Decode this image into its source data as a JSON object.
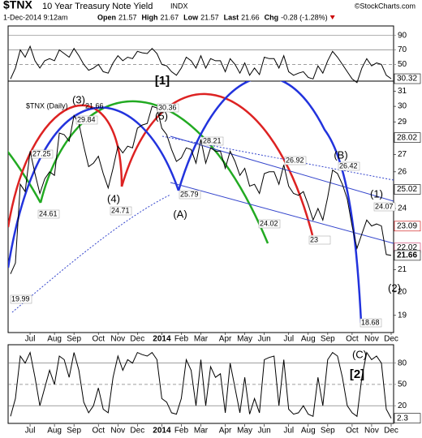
{
  "chart_data": [
    {
      "type": "line",
      "name": "RSI",
      "color": "#000000",
      "values": [
        30,
        45,
        70,
        60,
        75,
        55,
        45,
        55,
        58,
        55,
        70,
        65,
        60,
        72,
        62,
        50,
        42,
        45,
        50,
        40,
        38,
        52,
        62,
        55,
        60,
        58,
        68,
        66,
        65,
        72,
        65,
        50,
        48,
        40,
        35,
        45,
        60,
        55,
        45,
        62,
        45,
        58,
        55,
        55,
        40,
        58,
        50,
        38,
        52,
        35,
        45,
        36,
        60,
        58,
        58,
        45,
        62,
        40,
        35,
        38,
        40,
        32,
        30,
        48,
        38,
        55,
        68,
        60,
        50,
        40,
        30,
        25,
        45,
        58,
        48,
        52,
        50,
        35,
        30.32
      ],
      "ylim": [
        27,
        103
      ],
      "yticks": [
        50,
        70,
        90
      ],
      "grid": true
    },
    {
      "type": "line",
      "title": "$TNX",
      "subtitle": "10 Year Treasury Note Yield",
      "exchange": "INDX",
      "date": "1-Dec-2014 9:12am",
      "quote": [
        {
          "label": "Open",
          "value": 21.57
        },
        {
          "label": "High",
          "value": 21.67
        },
        {
          "label": "Low",
          "value": 21.57
        },
        {
          "label": "Last",
          "value": 21.66
        },
        {
          "label": "Chg",
          "value": -0.28,
          "value_label": "-0.28 (-1.28%)"
        }
      ],
      "legend": "$TNX (Daily)",
      "watermark": "©StockCharts.com",
      "categories": [
        null,
        null,
        null,
        null,
        "Jul",
        null,
        null,
        null,
        null,
        "Aug",
        null,
        null,
        null,
        "Sep",
        null,
        null,
        null,
        null,
        "Oct",
        null,
        null,
        null,
        "Nov",
        null,
        null,
        null,
        "Dec",
        null,
        null,
        null,
        null,
        "2014",
        null,
        null,
        null,
        "Feb",
        null,
        null,
        null,
        "Mar",
        null,
        null,
        null,
        null,
        "Apr",
        null,
        null,
        null,
        "May",
        null,
        null,
        null,
        "Jun",
        null,
        null,
        null,
        null,
        "Jul",
        null,
        null,
        null,
        "Aug",
        null,
        null,
        null,
        "Sep",
        null,
        null,
        null,
        null,
        "Oct",
        null,
        null,
        null,
        "Nov",
        null,
        null,
        null,
        "Dec"
      ],
      "values": [
        20.8,
        21.3,
        25.3,
        24.9,
        27.2,
        25.9,
        24.8,
        25.6,
        26.0,
        25.8,
        28.3,
        28.2,
        27.8,
        29.4,
        28.9,
        27.5,
        26.3,
        26.5,
        26.9,
        25.9,
        25.1,
        26.2,
        27.5,
        27.1,
        27.5,
        27.4,
        28.6,
        28.8,
        28.9,
        30.0,
        29.9,
        28.6,
        28.2,
        27.3,
        26.6,
        26.8,
        27.4,
        27.3,
        26.5,
        27.9,
        26.5,
        27.4,
        27.2,
        27.2,
        26.2,
        27.2,
        26.6,
        25.8,
        26.2,
        25.2,
        25.3,
        24.8,
        25.9,
        26.0,
        26.0,
        25.3,
        26.4,
        25.2,
        24.8,
        24.7,
        24.9,
        24.2,
        23.4,
        24.0,
        23.4,
        24.6,
        26.1,
        25.9,
        25.3,
        24.5,
        23.1,
        22.0,
        22.7,
        23.4,
        23.1,
        23.2,
        23.1,
        21.7,
        21.66
      ],
      "color": "#000000",
      "log": true,
      "ylim": [
        18.3,
        31.7
      ],
      "yticks": [
        19,
        20,
        21,
        24,
        26,
        27,
        29,
        30,
        31
      ],
      "level_labels": [
        {
          "value": 28.02,
          "color": "#000000"
        },
        {
          "value": 25.02,
          "color": "#000000"
        },
        {
          "value": 23.09,
          "color": "#cc0000"
        },
        {
          "value": 22.02,
          "color": "#cc3366"
        },
        {
          "value": 21.66,
          "color": "#000000"
        }
      ],
      "wave_labels": [
        {
          "text": "[1]",
          "color": "#0000cc"
        },
        {
          "text": "(3)",
          "color": "#000000"
        },
        {
          "text": "(5)",
          "color": "#000000"
        },
        {
          "text": "(4)",
          "color": "#000000"
        },
        {
          "text": "(A)",
          "color": "#000000"
        },
        {
          "text": "(B)",
          "color": "#000000"
        },
        {
          "text": "(1)",
          "color": "#000000"
        },
        {
          "text": "(2)",
          "color": "#000000"
        }
      ],
      "price_labels": [
        19.99,
        27.25,
        24.61,
        29.84,
        24.71,
        30.36,
        28.21,
        25.79,
        26.92,
        24.02,
        23.0,
        26.42,
        24.07,
        18.68
      ]
    },
    {
      "type": "line",
      "name": "Stochastic",
      "color": "#000000",
      "values": [
        5,
        30,
        90,
        80,
        95,
        60,
        20,
        45,
        70,
        50,
        90,
        85,
        60,
        95,
        70,
        25,
        10,
        20,
        45,
        15,
        10,
        60,
        90,
        70,
        85,
        80,
        95,
        92,
        90,
        95,
        85,
        30,
        25,
        10,
        8,
        30,
        85,
        70,
        20,
        85,
        20,
        75,
        60,
        65,
        10,
        80,
        45,
        10,
        60,
        8,
        30,
        10,
        85,
        88,
        90,
        20,
        85,
        15,
        8,
        10,
        20,
        8,
        5,
        60,
        20,
        85,
        95,
        90,
        60,
        20,
        10,
        5,
        60,
        95,
        85,
        90,
        80,
        15,
        2.3
      ],
      "ylim": [
        -5,
        106
      ],
      "yticks": [
        20,
        50,
        80
      ],
      "grid": true,
      "wave_labels": [
        {
          "text": "(C)",
          "color": "#000000"
        },
        {
          "text": "[2]",
          "color": "#0000cc"
        }
      ]
    }
  ]
}
